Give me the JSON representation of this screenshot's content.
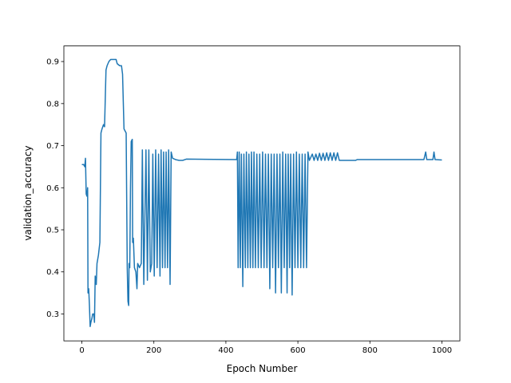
{
  "chart_data": {
    "type": "line",
    "xlabel": "Epoch Number",
    "ylabel": "validation_accuracy",
    "xlim": [
      -50,
      1050
    ],
    "ylim": [
      0.236,
      0.937
    ],
    "xticks": [
      0,
      200,
      400,
      600,
      800,
      1000
    ],
    "yticks": [
      0.3,
      0.4,
      0.5,
      0.6,
      0.7,
      0.8,
      0.9
    ],
    "series": [
      {
        "color": "#1f77b4",
        "x": [
          0,
          5,
          8,
          10,
          12,
          14,
          16,
          17,
          19,
          21,
          23,
          25,
          28,
          30,
          33,
          35,
          37,
          40,
          42,
          46,
          50,
          53,
          56,
          60,
          63,
          67,
          70,
          75,
          80,
          95,
          98,
          105,
          110,
          113,
          117,
          120,
          123,
          126,
          128,
          130,
          131,
          133,
          135,
          137,
          140,
          141,
          143,
          146,
          150,
          153,
          155,
          160,
          165,
          168,
          172,
          178,
          182,
          186,
          190,
          194,
          197,
          201,
          205,
          209,
          213,
          217,
          220,
          224,
          227,
          231,
          234,
          238,
          241,
          245,
          248,
          252,
          260,
          270,
          280,
          290,
          430,
          432,
          434,
          437,
          440,
          443,
          447,
          450,
          454,
          457,
          461,
          464,
          468,
          471,
          475,
          478,
          482,
          486,
          490,
          494,
          498,
          502,
          506,
          510,
          514,
          518,
          522,
          526,
          530,
          534,
          538,
          542,
          546,
          550,
          554,
          558,
          562,
          566,
          570,
          573,
          577,
          580,
          584,
          588,
          592,
          596,
          600,
          604,
          608,
          612,
          616,
          620,
          624,
          628,
          632,
          640,
          645,
          650,
          655,
          660,
          665,
          670,
          675,
          680,
          685,
          690,
          695,
          700,
          705,
          710,
          715,
          760,
          765,
          950,
          955,
          958,
          975,
          978,
          981,
          1000
        ],
        "values": [
          0.655,
          0.655,
          0.65,
          0.67,
          0.585,
          0.58,
          0.6,
          0.35,
          0.36,
          0.32,
          0.27,
          0.28,
          0.29,
          0.3,
          0.3,
          0.28,
          0.39,
          0.37,
          0.42,
          0.44,
          0.47,
          0.73,
          0.74,
          0.75,
          0.745,
          0.88,
          0.89,
          0.9,
          0.905,
          0.905,
          0.895,
          0.89,
          0.89,
          0.87,
          0.74,
          0.735,
          0.73,
          0.41,
          0.33,
          0.32,
          0.42,
          0.41,
          0.6,
          0.71,
          0.715,
          0.47,
          0.48,
          0.41,
          0.4,
          0.36,
          0.42,
          0.41,
          0.42,
          0.69,
          0.37,
          0.69,
          0.38,
          0.69,
          0.4,
          0.42,
          0.68,
          0.39,
          0.69,
          0.41,
          0.68,
          0.39,
          0.69,
          0.41,
          0.685,
          0.41,
          0.685,
          0.41,
          0.69,
          0.37,
          0.685,
          0.67,
          0.667,
          0.665,
          0.665,
          0.668,
          0.667,
          0.685,
          0.41,
          0.685,
          0.41,
          0.68,
          0.365,
          0.68,
          0.41,
          0.685,
          0.41,
          0.68,
          0.41,
          0.685,
          0.41,
          0.685,
          0.41,
          0.68,
          0.41,
          0.68,
          0.41,
          0.685,
          0.41,
          0.68,
          0.41,
          0.68,
          0.36,
          0.68,
          0.41,
          0.68,
          0.35,
          0.68,
          0.41,
          0.68,
          0.35,
          0.685,
          0.41,
          0.68,
          0.35,
          0.68,
          0.41,
          0.68,
          0.345,
          0.68,
          0.41,
          0.685,
          0.41,
          0.68,
          0.41,
          0.68,
          0.41,
          0.68,
          0.41,
          0.685,
          0.665,
          0.68,
          0.665,
          0.68,
          0.665,
          0.682,
          0.665,
          0.682,
          0.665,
          0.683,
          0.665,
          0.683,
          0.665,
          0.683,
          0.665,
          0.683,
          0.665,
          0.665,
          0.667,
          0.667,
          0.685,
          0.667,
          0.667,
          0.685,
          0.667,
          0.666
        ]
      }
    ]
  }
}
